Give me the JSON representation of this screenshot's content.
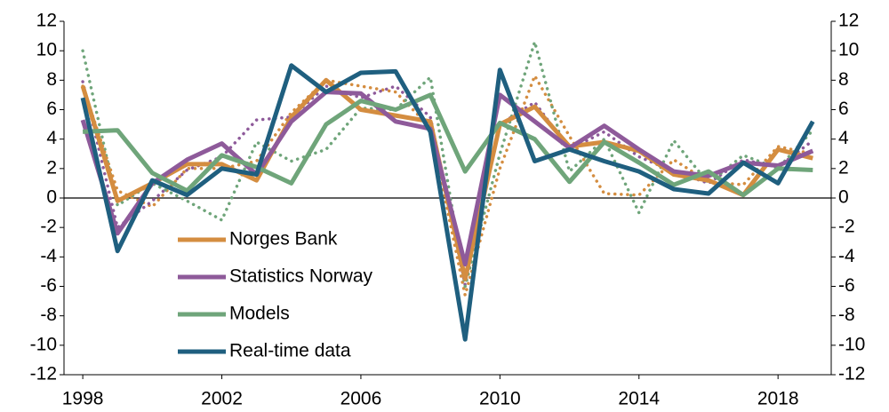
{
  "chart_data": {
    "type": "line",
    "x": [
      1998,
      1999,
      2000,
      2001,
      2002,
      2003,
      2004,
      2005,
      2006,
      2007,
      2008,
      2009,
      2010,
      2011,
      2012,
      2013,
      2014,
      2015,
      2016,
      2017,
      2018,
      2019
    ],
    "xlim": [
      1997.46,
      2019.53
    ],
    "xticks": [
      1998,
      2002,
      2006,
      2010,
      2014,
      2018
    ],
    "ylim": [
      -12,
      12
    ],
    "yticks": [
      -12,
      -10,
      -8,
      -6,
      -4,
      -2,
      0,
      2,
      4,
      6,
      8,
      10,
      12
    ],
    "y2lim": [
      -12,
      12
    ],
    "y2ticks": [
      -12,
      -10,
      -8,
      -6,
      -4,
      -2,
      0,
      2,
      4,
      6,
      8,
      10,
      12
    ],
    "series": [
      {
        "color": "#d48d40",
        "line_style": "dotted",
        "values": [
          7.6,
          0.5,
          -0.6,
          2.0,
          2.0,
          2.5,
          5.8,
          8.0,
          7.6,
          7.2,
          4.8,
          -6.6,
          2.0,
          8.3,
          4.2,
          0.3,
          0.2,
          2.6,
          1.1,
          0.9,
          3.5,
          3.0
        ]
      },
      {
        "color": "#8e5a9a",
        "line_style": "dotted",
        "values": [
          7.9,
          -2.0,
          -0.2,
          1.9,
          2.8,
          5.3,
          5.5,
          7.6,
          6.8,
          7.6,
          5.5,
          -5.9,
          5.0,
          6.5,
          3.3,
          4.5,
          2.8,
          1.8,
          1.0,
          2.6,
          2.1,
          3.9
        ]
      },
      {
        "color": "#6fa57a",
        "line_style": "dotted",
        "values": [
          10.0,
          -0.5,
          1.0,
          -0.2,
          -1.5,
          3.8,
          2.5,
          3.3,
          6.1,
          6.0,
          8.2,
          -6.0,
          3.0,
          10.6,
          1.8,
          4.0,
          -1.0,
          3.9,
          1.0,
          2.9,
          2.0,
          4.6
        ]
      },
      {
        "name": "Norges Bank",
        "color": "#d48d40",
        "line_style": "solid",
        "values": [
          7.6,
          -0.2,
          1.0,
          2.3,
          2.3,
          1.2,
          5.5,
          8.0,
          6.0,
          5.6,
          5.2,
          -5.5,
          5.0,
          6.2,
          3.5,
          3.8,
          3.2,
          1.6,
          1.2,
          0.2,
          3.3,
          2.7
        ]
      },
      {
        "name": "Statistics Norway",
        "color": "#8e5a9a",
        "line_style": "solid",
        "values": [
          5.3,
          -2.4,
          1.0,
          2.6,
          3.7,
          1.6,
          5.2,
          7.2,
          7.1,
          5.2,
          4.7,
          -4.5,
          7.0,
          5.2,
          3.4,
          4.9,
          3.3,
          1.8,
          1.5,
          2.4,
          2.2,
          3.2
        ]
      },
      {
        "name": "Models",
        "color": "#6fa57a",
        "line_style": "solid",
        "values": [
          4.5,
          4.6,
          1.7,
          0.5,
          2.9,
          2.1,
          1.0,
          5.0,
          6.6,
          6.0,
          7.0,
          1.8,
          5.1,
          4.0,
          1.1,
          3.8,
          2.4,
          0.9,
          1.8,
          0.2,
          2.0,
          1.9
        ]
      },
      {
        "name": "Real-time data",
        "color": "#1f5f7f",
        "line_style": "solid",
        "values": [
          6.8,
          -3.6,
          1.2,
          0.2,
          2.0,
          1.6,
          9.0,
          7.2,
          8.5,
          8.6,
          4.5,
          -9.6,
          8.7,
          2.5,
          3.3,
          2.5,
          1.8,
          0.6,
          0.3,
          2.4,
          1.0,
          5.2
        ]
      }
    ]
  }
}
